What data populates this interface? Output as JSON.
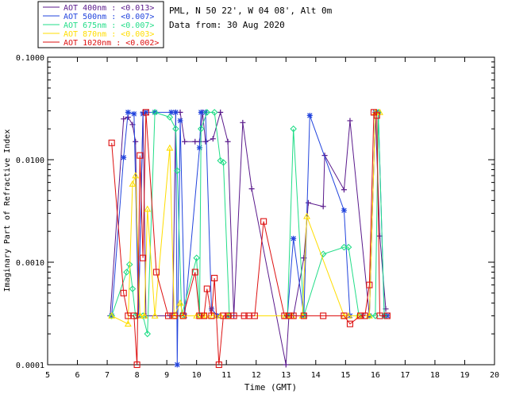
{
  "chart_data": {
    "type": "scatter",
    "header": {
      "site": "PML, N 50 22', W 04 08', Alt 0m",
      "date": "Data from: 30 Aug 2020"
    },
    "xlabel": "Time (GMT)",
    "ylabel": "Imaginary Part of Refractive Index",
    "xlim": [
      5,
      20
    ],
    "ylim": [
      0.0001,
      0.1
    ],
    "yscale": "log",
    "x_ticks": [
      "5",
      "6",
      "7",
      "8",
      "9",
      "10",
      "11",
      "12",
      "13",
      "14",
      "15",
      "16",
      "17",
      "18",
      "19",
      "20"
    ],
    "y_ticks": [
      "0.0001",
      "0.0010",
      "0.0100",
      "0.1000"
    ],
    "grid": false,
    "legend_position": "top-left outside plot",
    "series": [
      {
        "name": "AOT 400nm : <0.013>",
        "color": "#5a1a8c",
        "marker": "plus",
        "x": [
          7.1,
          7.55,
          7.7,
          7.85,
          7.95,
          8.05,
          8.2,
          8.3,
          9.1,
          9.2,
          9.3,
          9.45,
          9.6,
          9.95,
          10.1,
          10.2,
          10.3,
          10.55,
          10.8,
          11.05,
          11.25,
          11.55,
          11.85,
          13.0,
          13.1,
          13.25,
          13.6,
          13.75,
          14.25,
          14.3,
          14.95,
          15.15,
          15.8,
          16.0,
          16.15,
          16.35
        ],
        "y": [
          0.0003,
          0.025,
          0.026,
          0.022,
          0.015,
          0.0003,
          0.029,
          0.0003,
          0.0003,
          0.0003,
          0.029,
          0.029,
          0.015,
          0.015,
          0.015,
          0.029,
          0.015,
          0.016,
          0.029,
          0.015,
          0.0003,
          0.023,
          0.0052,
          0.0001,
          0.0003,
          0.0003,
          0.0011,
          0.0038,
          0.0035,
          0.011,
          0.0051,
          0.024,
          0.0003,
          0.029,
          0.0018,
          0.00035
        ]
      },
      {
        "name": "AOT 500nm : <0.007>",
        "color": "#2244dd",
        "marker": "asterisk",
        "x": [
          7.15,
          7.55,
          7.7,
          7.9,
          8.05,
          8.2,
          8.3,
          8.6,
          9.15,
          9.3,
          9.35,
          9.45,
          9.6,
          10.1,
          10.15,
          10.3,
          10.5,
          10.7,
          11.05,
          13.05,
          13.25,
          13.6,
          13.8,
          14.95,
          15.15,
          15.55,
          15.8,
          16.0,
          16.1,
          16.3,
          16.4
        ],
        "y": [
          0.0003,
          0.0105,
          0.029,
          0.028,
          0.0003,
          0.028,
          0.029,
          0.029,
          0.029,
          0.029,
          0.0001,
          0.024,
          0.0003,
          0.0131,
          0.029,
          0.029,
          0.00035,
          0.0003,
          0.0003,
          0.0003,
          0.0017,
          0.0003,
          0.027,
          0.0032,
          0.0003,
          0.0003,
          0.0003,
          0.029,
          0.029,
          0.0003,
          0.0003
        ]
      },
      {
        "name": "AOT 675nm : <0.007>",
        "color": "#22dd88",
        "marker": "diamond",
        "x": [
          7.15,
          7.65,
          7.75,
          7.85,
          7.95,
          8.2,
          8.35,
          8.6,
          9.1,
          9.3,
          9.35,
          9.5,
          10.0,
          10.1,
          10.15,
          10.35,
          10.6,
          10.8,
          10.9,
          11.1,
          13.05,
          13.25,
          13.6,
          14.25,
          14.95,
          15.1,
          15.45,
          15.8,
          16.0,
          16.1,
          16.3
        ],
        "y": [
          0.0003,
          0.0008,
          0.00095,
          0.00055,
          0.0003,
          0.0003,
          0.0002,
          0.029,
          0.026,
          0.02,
          0.0078,
          0.0003,
          0.0011,
          0.0003,
          0.02,
          0.029,
          0.029,
          0.0098,
          0.0094,
          0.0003,
          0.0003,
          0.02,
          0.0003,
          0.0012,
          0.0014,
          0.0014,
          0.0003,
          0.0003,
          0.0003,
          0.029,
          0.0003
        ]
      },
      {
        "name": "AOT 870nm : <0.003>",
        "color": "#ffdd00",
        "marker": "triangle",
        "x": [
          7.15,
          7.7,
          7.85,
          7.95,
          8.1,
          8.25,
          8.35,
          8.6,
          9.1,
          9.25,
          9.45,
          9.55,
          10.0,
          10.2,
          10.3,
          10.55,
          10.8,
          11.05,
          13.0,
          13.2,
          13.55,
          13.7,
          14.95,
          15.1,
          15.45,
          15.8,
          16.0,
          16.15
        ],
        "y": [
          0.0003,
          0.00025,
          0.0058,
          0.007,
          0.0003,
          0.0003,
          0.0033,
          0.0003,
          0.013,
          0.0003,
          0.0004,
          0.0003,
          0.0003,
          0.0003,
          0.0003,
          0.0003,
          0.0003,
          0.0003,
          0.0003,
          0.0003,
          0.0003,
          0.0028,
          0.0003,
          0.0003,
          0.0003,
          0.0003,
          0.029,
          0.029
        ]
      },
      {
        "name": "AOT 1020nm : <0.002>",
        "color": "#dd1111",
        "marker": "square",
        "x": [
          7.15,
          7.55,
          7.7,
          7.9,
          8.0,
          8.1,
          8.2,
          8.3,
          8.65,
          9.05,
          9.25,
          9.55,
          9.95,
          10.1,
          10.25,
          10.35,
          10.5,
          10.6,
          10.75,
          10.9,
          11.05,
          11.25,
          11.6,
          11.75,
          11.95,
          12.25,
          12.95,
          13.1,
          13.25,
          13.6,
          14.25,
          14.95,
          15.15,
          15.5,
          15.65,
          15.8,
          15.95,
          16.05,
          16.15,
          16.4
        ],
        "y": [
          0.0146,
          0.0005,
          0.0003,
          0.0003,
          0.0001,
          0.011,
          0.0011,
          0.029,
          0.0008,
          0.0003,
          0.0003,
          0.0003,
          0.0008,
          0.0003,
          0.0003,
          0.00055,
          0.0003,
          0.0007,
          0.0001,
          0.0003,
          0.0003,
          0.0003,
          0.0003,
          0.0003,
          0.0003,
          0.0025,
          0.0003,
          0.0003,
          0.0003,
          0.0003,
          0.0003,
          0.0003,
          0.00025,
          0.0003,
          0.0003,
          0.0006,
          0.029,
          0.027,
          0.0003,
          0.0003
        ]
      }
    ]
  }
}
